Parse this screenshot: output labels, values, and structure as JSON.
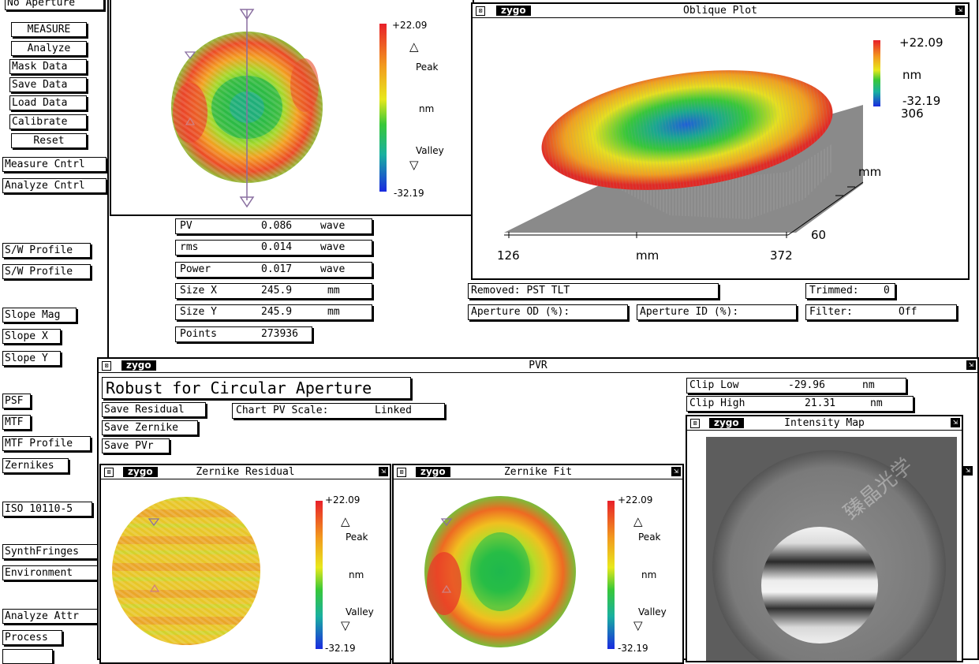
{
  "top_left_label": "No Aperture",
  "left_menu": {
    "measure": "MEASURE",
    "analyze": "Analyze",
    "mask_data": "Mask Data",
    "save_data": "Save Data",
    "load_data": "Load Data",
    "calibrate": "Calibrate",
    "reset": "Reset",
    "measure_cntrl": "Measure Cntrl",
    "analyze_cntrl": "Analyze Cntrl",
    "sw_profile_1": "S/W Profile",
    "sw_profile_2": "S/W Profile",
    "slope_mag": "Slope Mag",
    "slope_x": "Slope X",
    "slope_y": "Slope Y",
    "psf": "PSF",
    "mtf": "MTF",
    "mtf_profile": "MTF Profile",
    "zernikes": "Zernikes",
    "iso": "ISO 10110-5",
    "synthfringes": "SynthFringes",
    "environment": "Environment",
    "analyze_attr": "Analyze Attr",
    "process": "Process"
  },
  "scale": {
    "max": "+22.09",
    "min": "-32.19",
    "peak": "Peak",
    "valley": "Valley",
    "unit": "nm"
  },
  "results": {
    "pv": {
      "label": "PV",
      "value": "0.086",
      "unit": "wave"
    },
    "rms": {
      "label": "rms",
      "value": "0.014",
      "unit": "wave"
    },
    "power": {
      "label": "Power",
      "value": "0.017",
      "unit": "wave"
    },
    "size_x": {
      "label": "Size X",
      "value": "245.9",
      "unit": "mm"
    },
    "size_y": {
      "label": "Size Y",
      "value": "245.9",
      "unit": "mm"
    },
    "points": {
      "label": "Points",
      "value": "273936"
    }
  },
  "brand": "zygo",
  "oblique": {
    "title": "Oblique Plot",
    "scale_max": "+22.09",
    "scale_unit": "nm",
    "scale_min": "-32.19",
    "scale_extra": "306",
    "y_unit": "mm",
    "y_tick": "60",
    "x_min": "126",
    "x_unit": "mm",
    "x_max": "372"
  },
  "status": {
    "removed": "Removed: PST TLT",
    "trimmed_label": "Trimmed:",
    "trimmed_value": "0",
    "aperture_od": "Aperture OD (%):",
    "aperture_id": "Aperture ID (%):",
    "filter_label": "Filter:",
    "filter_value": "Off"
  },
  "pvr": {
    "title": "PVR",
    "method": "Robust for Circular Aperture",
    "save_residual": "Save Residual",
    "save_zernike": "Save Zernike",
    "save_pvr": "Save PVr",
    "chart_pv_label": "Chart PV Scale:",
    "chart_pv_value": "Linked",
    "clip_low_label": "Clip Low",
    "clip_low_value": "-29.96",
    "clip_low_unit": "nm",
    "clip_high_label": "Clip High",
    "clip_high_value": "21.31",
    "clip_high_unit": "nm"
  },
  "zernike_residual": {
    "title": "Zernike Residual"
  },
  "zernike_fit": {
    "title": "Zernike Fit"
  },
  "intensity_map": {
    "title": "Intensity Map"
  },
  "watermark": "臻晶光学"
}
